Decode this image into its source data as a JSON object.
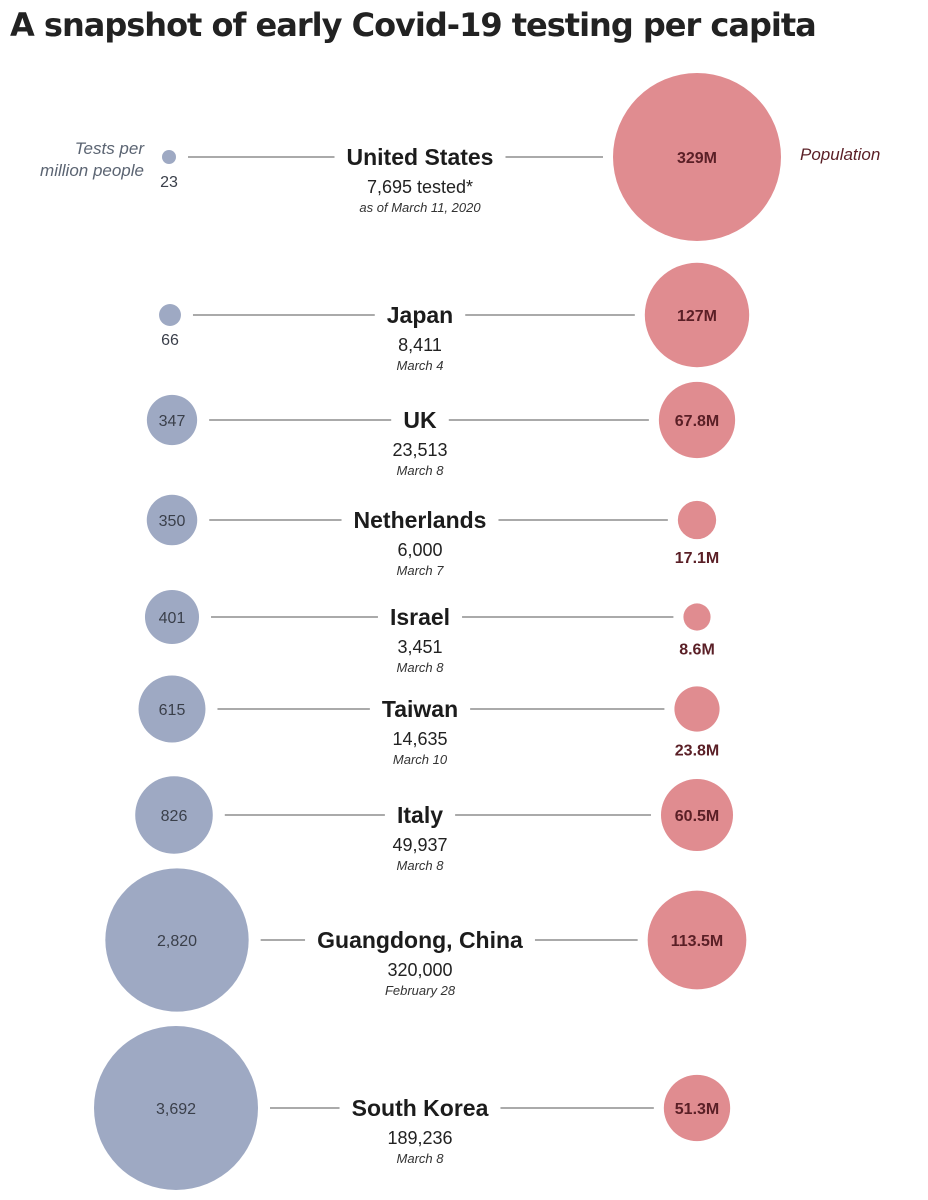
{
  "title": "A snapshot of early Covid-19 testing per capita",
  "legend": {
    "tests_line1": "Tests per",
    "tests_line2": "million people",
    "population": "Population"
  },
  "colors": {
    "tests": "#9ea9c3",
    "population": "#e08c90",
    "connector": "#777777"
  },
  "chart_data": {
    "type": "bubble",
    "title": "A snapshot of early Covid-19 testing per capita",
    "series": [
      {
        "name": "Tests per million people",
        "unit": "tests per million"
      },
      {
        "name": "Population",
        "unit": "millions"
      }
    ],
    "rows": [
      {
        "country": "United States",
        "tested_label": "7,695 tested*",
        "tested": 7695,
        "as_of": "as of March 11, 2020",
        "tests_per_million": 23,
        "tests_label": "23",
        "population_m": 329,
        "population_label": "329M"
      },
      {
        "country": "Japan",
        "tested_label": "8,411",
        "tested": 8411,
        "as_of": "March 4",
        "tests_per_million": 66,
        "tests_label": "66",
        "population_m": 127,
        "population_label": "127M"
      },
      {
        "country": "UK",
        "tested_label": "23,513",
        "tested": 23513,
        "as_of": "March 8",
        "tests_per_million": 347,
        "tests_label": "347",
        "population_m": 67.8,
        "population_label": "67.8M"
      },
      {
        "country": "Netherlands",
        "tested_label": "6,000",
        "tested": 6000,
        "as_of": "March 7",
        "tests_per_million": 350,
        "tests_label": "350",
        "population_m": 17.1,
        "population_label": "17.1M"
      },
      {
        "country": "Israel",
        "tested_label": "3,451",
        "tested": 3451,
        "as_of": "March 8",
        "tests_per_million": 401,
        "tests_label": "401",
        "population_m": 8.6,
        "population_label": "8.6M"
      },
      {
        "country": "Taiwan",
        "tested_label": "14,635",
        "tested": 14635,
        "as_of": "March 10",
        "tests_per_million": 615,
        "tests_label": "615",
        "population_m": 23.8,
        "population_label": "23.8M"
      },
      {
        "country": "Italy",
        "tested_label": "49,937",
        "tested": 49937,
        "as_of": "March 8",
        "tests_per_million": 826,
        "tests_label": "826",
        "population_m": 60.5,
        "population_label": "60.5M"
      },
      {
        "country": "Guangdong, China",
        "tested_label": "320,000",
        "tested": 320000,
        "as_of": "February 28",
        "tests_per_million": 2820,
        "tests_label": "2,820",
        "population_m": 113.5,
        "population_label": "113.5M"
      },
      {
        "country": "South Korea",
        "tested_label": "189,236",
        "tested": 189236,
        "as_of": "March 8",
        "tests_per_million": 3692,
        "tests_label": "3,692",
        "population_m": 51.3,
        "population_label": "51.3M"
      }
    ]
  }
}
